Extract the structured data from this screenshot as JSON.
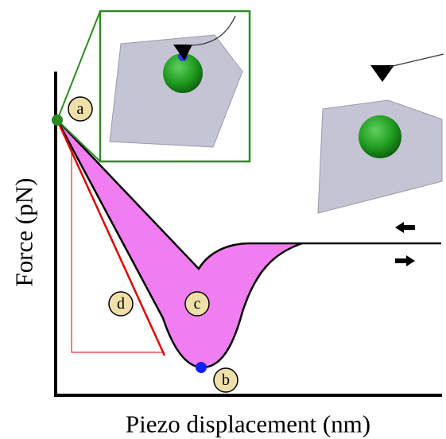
{
  "axes": {
    "y_label": "Force (pN)",
    "x_label": "Piezo displacement (nm)"
  },
  "labels": [
    "a",
    "b",
    "c",
    "d"
  ]
}
